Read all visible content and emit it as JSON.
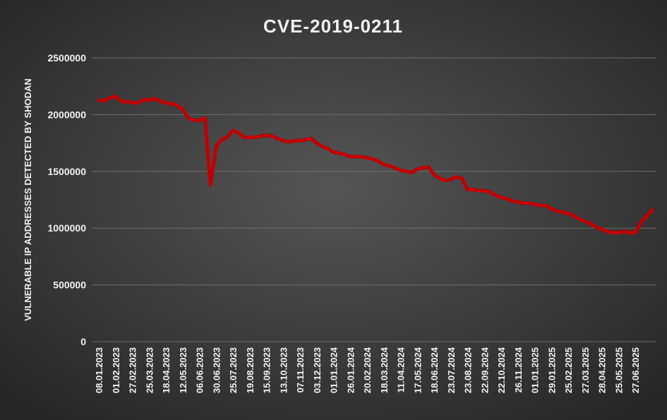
{
  "chart_data": {
    "type": "line",
    "title": "CVE-2019-0211",
    "y_label": "VULNERABLE IP ADDRESSES DETECTED BY SHODAN",
    "categories": [
      "08.01.2023",
      null,
      null,
      "01.02.2023",
      null,
      null,
      "27.02.2023",
      null,
      null,
      "25.03.2023",
      null,
      null,
      "18.04.2023",
      null,
      null,
      "12.05.2023",
      null,
      null,
      "06.06.2023",
      null,
      null,
      "30.06.2023",
      null,
      null,
      "25.07.2023",
      null,
      null,
      "19.08.2023",
      null,
      null,
      "15.09.2023",
      null,
      null,
      "13.10.2023",
      null,
      null,
      "07.11.2023",
      null,
      null,
      "03.12.2023",
      null,
      null,
      "01.01.2024",
      null,
      null,
      "26.01.2024",
      null,
      null,
      "20.02.2024",
      null,
      null,
      "18.03.2024",
      null,
      null,
      "11.04.2024",
      null,
      null,
      "17.05.2024",
      null,
      null,
      "18.06.2024",
      null,
      null,
      "23.07.2024",
      null,
      null,
      "23.08.2024",
      null,
      null,
      "22.09.2024",
      null,
      null,
      "22.10.2024",
      null,
      null,
      "26.11.2024",
      null,
      null,
      "01.01.2025",
      null,
      null,
      "29.01.2025",
      null,
      null,
      "25.02.2025",
      null,
      null,
      "27.03.2025",
      null,
      null,
      "28.04.2025",
      null,
      null,
      "25.05.2025",
      null,
      null,
      "27.06.2025",
      null,
      null,
      null
    ],
    "series": [
      {
        "name": "CVE-2019-0211",
        "color": "#c00000",
        "values": [
          2130000,
          2120000,
          2150000,
          2160000,
          2120000,
          2110000,
          2110000,
          2100000,
          2130000,
          2130000,
          2140000,
          2120000,
          2100000,
          2100000,
          2080000,
          2050000,
          1970000,
          1950000,
          1950000,
          1970000,
          1380000,
          1720000,
          1780000,
          1800000,
          1860000,
          1840000,
          1800000,
          1800000,
          1800000,
          1810000,
          1820000,
          1810000,
          1790000,
          1770000,
          1760000,
          1770000,
          1770000,
          1780000,
          1790000,
          1750000,
          1720000,
          1700000,
          1670000,
          1660000,
          1650000,
          1630000,
          1630000,
          1630000,
          1620000,
          1610000,
          1590000,
          1560000,
          1550000,
          1530000,
          1510000,
          1500000,
          1490000,
          1520000,
          1530000,
          1540000,
          1470000,
          1440000,
          1420000,
          1430000,
          1450000,
          1440000,
          1340000,
          1340000,
          1330000,
          1330000,
          1320000,
          1290000,
          1270000,
          1260000,
          1240000,
          1230000,
          1220000,
          1220000,
          1210000,
          1200000,
          1200000,
          1170000,
          1150000,
          1140000,
          1130000,
          1110000,
          1080000,
          1060000,
          1040000,
          1010000,
          990000,
          970000,
          960000,
          960000,
          970000,
          960000,
          960000,
          1050000,
          1100000,
          1160000
        ]
      }
    ],
    "ylim": [
      0,
      2500000
    ],
    "yticks": [
      0,
      500000,
      1000000,
      1500000,
      2000000,
      2500000
    ],
    "grid": true
  }
}
